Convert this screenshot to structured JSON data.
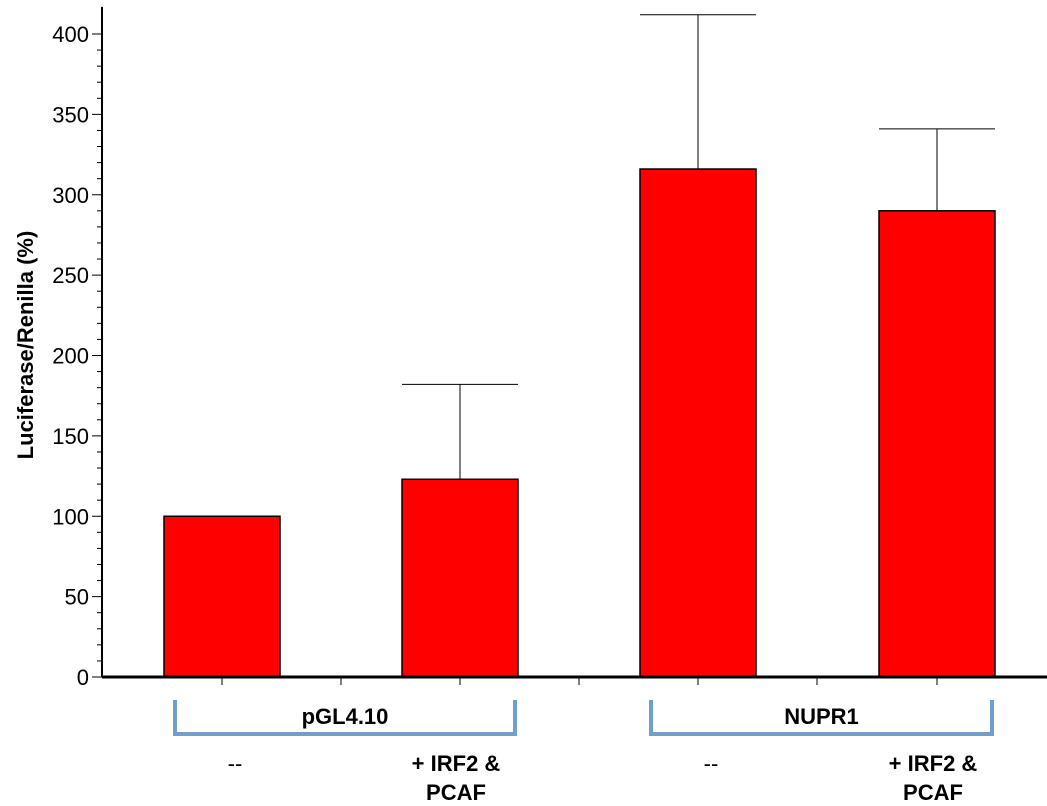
{
  "chart_data": {
    "type": "bar",
    "title": "",
    "ylabel": "Luciferase/Renilla (%)",
    "ylim": [
      0,
      415
    ],
    "yticks": [
      0,
      50,
      100,
      150,
      200,
      250,
      300,
      350,
      400
    ],
    "yticks_labels": [
      "0",
      "50",
      "100",
      "150",
      "200",
      "250",
      "300",
      "350",
      "400"
    ],
    "categories": [
      "--",
      "+ IRF2 & PCAF",
      "--",
      "+ IRF2 & PCAF"
    ],
    "category_lines": [
      [
        "--"
      ],
      [
        "+ IRF2 &",
        "PCAF"
      ],
      [
        "--"
      ],
      [
        "+ IRF2 &",
        "PCAF"
      ]
    ],
    "groups": [
      {
        "label": "pGL4.10",
        "members": [
          0,
          1
        ]
      },
      {
        "label": "NUPR1",
        "members": [
          2,
          3
        ]
      }
    ],
    "values": [
      100,
      123,
      316,
      290
    ],
    "error_upper": [
      0,
      59,
      96,
      51
    ],
    "bar_color": "#ff0000",
    "bracket_color": "#6e9fcf",
    "grid": false
  }
}
